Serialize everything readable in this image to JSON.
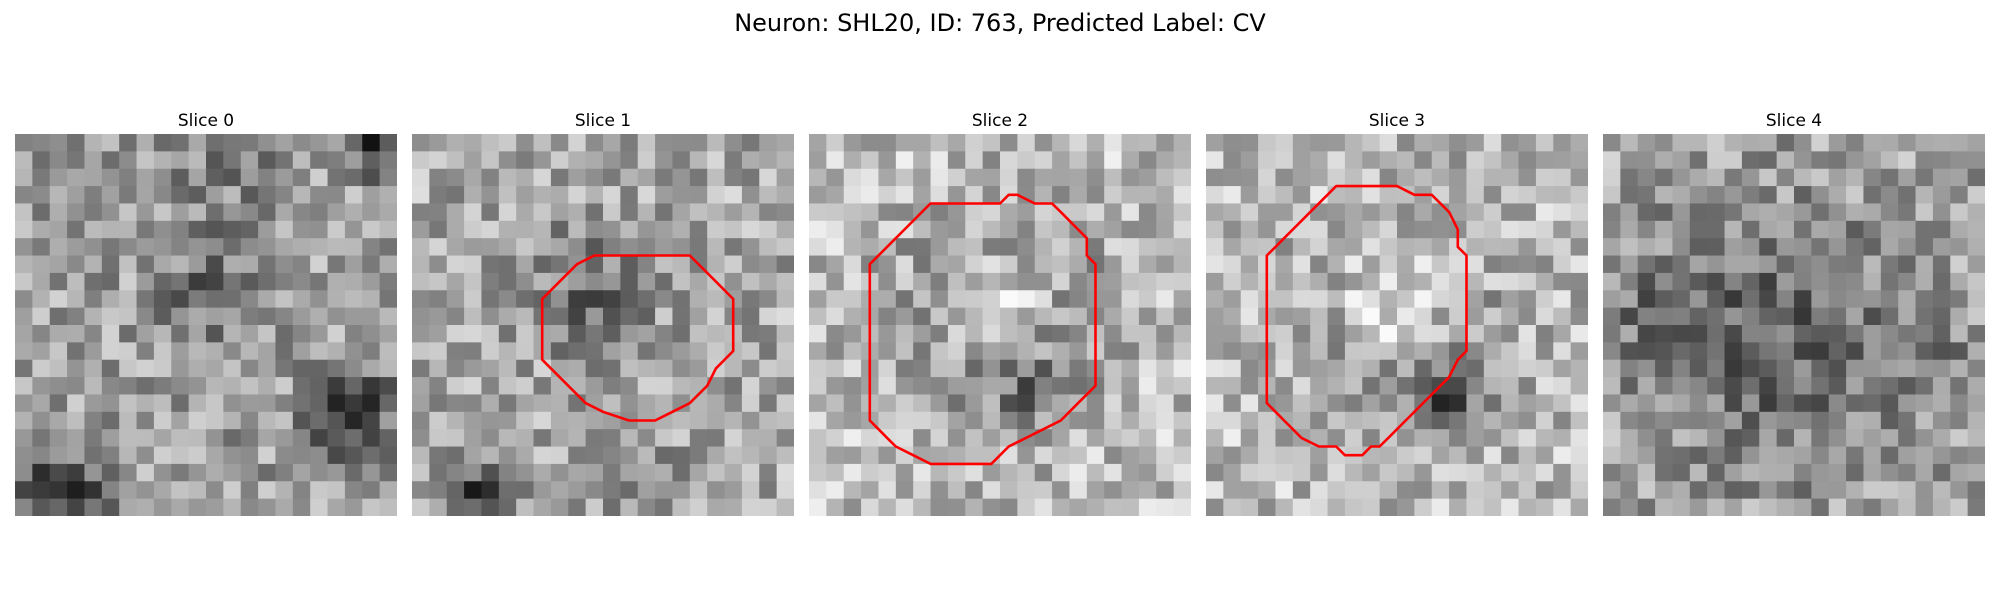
{
  "figure": {
    "title": "Neuron: SHL20, ID: 763, Predicted Label: CV"
  },
  "panels": [
    {
      "title": "Slice 0",
      "seed": 11,
      "blobs": [
        [
          0.55,
          0.08,
          0.22,
          0.1
        ],
        [
          0.88,
          0.73,
          0.12,
          0.5
        ],
        [
          0.12,
          0.95,
          0.16,
          0.35
        ],
        [
          0.52,
          0.42,
          0.15,
          0.22
        ],
        [
          0.95,
          0.04,
          0.08,
          0.45
        ]
      ],
      "mean": 0.62,
      "contour": []
    },
    {
      "title": "Slice 1",
      "seed": 23,
      "blobs": [
        [
          0.47,
          0.42,
          0.19,
          0.25
        ],
        [
          0.17,
          0.95,
          0.09,
          0.45
        ],
        [
          0.62,
          0.95,
          0.12,
          0.2
        ]
      ],
      "mean": 0.66,
      "contour": [
        [
          13,
          7
        ],
        [
          16,
          7
        ],
        [
          17.5,
          8.5
        ],
        [
          18.5,
          9.5
        ],
        [
          18.5,
          12.5
        ],
        [
          17.5,
          13.5
        ],
        [
          17,
          14.5
        ],
        [
          16,
          15.5
        ],
        [
          15,
          16
        ],
        [
          14,
          16.5
        ],
        [
          12.5,
          16.5
        ],
        [
          11,
          16
        ],
        [
          10,
          15.5
        ],
        [
          9,
          14.5
        ],
        [
          7.5,
          13
        ],
        [
          7.5,
          9.5
        ],
        [
          8.5,
          8.5
        ],
        [
          9.5,
          7.5
        ],
        [
          10.5,
          7
        ],
        [
          11,
          7
        ]
      ]
    },
    {
      "title": "Slice 2",
      "seed": 37,
      "blobs": [
        [
          0.5,
          0.48,
          0.34,
          0.3
        ],
        [
          0.5,
          0.45,
          0.18,
          -0.35
        ],
        [
          0.58,
          0.67,
          0.12,
          0.2
        ]
      ],
      "mean": 0.75,
      "contour": [
        [
          11,
          4
        ],
        [
          11.5,
          3.5
        ],
        [
          12,
          3.5
        ],
        [
          13,
          4
        ],
        [
          14,
          4
        ],
        [
          14.5,
          4.5
        ],
        [
          15,
          5
        ],
        [
          15.5,
          5.5
        ],
        [
          16,
          6
        ],
        [
          16,
          7
        ],
        [
          16.5,
          7.5
        ],
        [
          16.5,
          8.5
        ],
        [
          16.5,
          10.5
        ],
        [
          16.5,
          12.5
        ],
        [
          16.5,
          14.5
        ],
        [
          15.5,
          15.5
        ],
        [
          14.5,
          16.5
        ],
        [
          13.5,
          17
        ],
        [
          12.5,
          17.5
        ],
        [
          11.5,
          18
        ],
        [
          10.5,
          19
        ],
        [
          7,
          19
        ],
        [
          6,
          18.5
        ],
        [
          5,
          18
        ],
        [
          4.5,
          17.5
        ],
        [
          4,
          17
        ],
        [
          3.5,
          16.5
        ],
        [
          3.5,
          15
        ],
        [
          3.5,
          12
        ],
        [
          3.5,
          10
        ],
        [
          3.5,
          7.5
        ],
        [
          4.5,
          6.5
        ],
        [
          5,
          6
        ],
        [
          5.5,
          5.5
        ],
        [
          6,
          5
        ],
        [
          6.5,
          4.5
        ],
        [
          7,
          4
        ],
        [
          9,
          4
        ],
        [
          10,
          4
        ]
      ]
    },
    {
      "title": "Slice 3",
      "seed": 53,
      "blobs": [
        [
          0.52,
          0.52,
          0.32,
          0.2
        ],
        [
          0.5,
          0.45,
          0.17,
          -0.32
        ],
        [
          0.62,
          0.73,
          0.1,
          0.35
        ]
      ],
      "mean": 0.73,
      "contour": [
        [
          7.5,
          3
        ],
        [
          8.5,
          3
        ],
        [
          9.5,
          3
        ],
        [
          11,
          3
        ],
        [
          12,
          3.5
        ],
        [
          13,
          3.5
        ],
        [
          14,
          4.5
        ],
        [
          14.5,
          5.5
        ],
        [
          14.5,
          6.5
        ],
        [
          15,
          7
        ],
        [
          15,
          10.5
        ],
        [
          15,
          12.5
        ],
        [
          14.5,
          13
        ],
        [
          14,
          14
        ],
        [
          13,
          15
        ],
        [
          12,
          16
        ],
        [
          11.5,
          16.5
        ],
        [
          11,
          17
        ],
        [
          10.5,
          17.5
        ],
        [
          10,
          18
        ],
        [
          9.5,
          18
        ],
        [
          9,
          18.5
        ],
        [
          8,
          18.5
        ],
        [
          7.5,
          18
        ],
        [
          6.5,
          18
        ],
        [
          5.5,
          17.5
        ],
        [
          5,
          17
        ],
        [
          4.5,
          16.5
        ],
        [
          4,
          16
        ],
        [
          3.5,
          15.5
        ],
        [
          3.5,
          14.5
        ],
        [
          3.5,
          13
        ],
        [
          3.5,
          12.5
        ],
        [
          3.5,
          10
        ],
        [
          3.5,
          8
        ],
        [
          3.5,
          7
        ],
        [
          4,
          6.5
        ],
        [
          4.5,
          6
        ],
        [
          5,
          5.5
        ],
        [
          5.5,
          5
        ],
        [
          6,
          4.5
        ],
        [
          7,
          3.5
        ]
      ]
    },
    {
      "title": "Slice 4",
      "seed": 71,
      "blobs": [
        [
          0.45,
          0.55,
          0.4,
          0.25
        ],
        [
          0.85,
          0.55,
          0.12,
          0.12
        ],
        [
          0.12,
          0.45,
          0.22,
          0.1
        ]
      ],
      "mean": 0.64,
      "contour": []
    }
  ],
  "colors": {
    "contour": "#ff0000"
  }
}
